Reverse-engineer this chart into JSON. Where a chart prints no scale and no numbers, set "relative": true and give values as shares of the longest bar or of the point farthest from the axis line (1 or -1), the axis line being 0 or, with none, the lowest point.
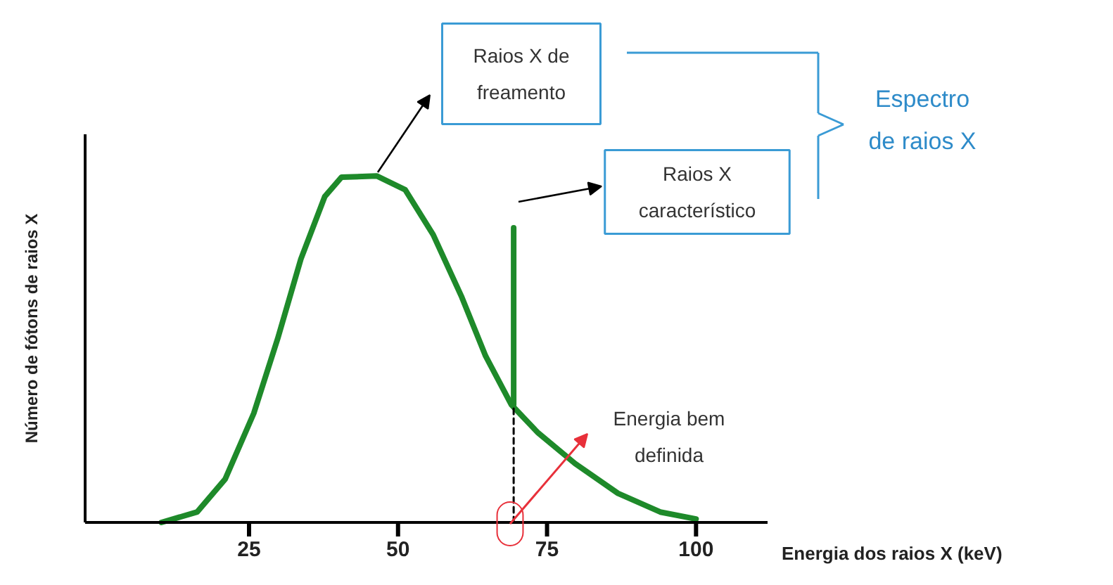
{
  "chart_data": {
    "type": "line",
    "xlabel": "Energia dos raios X (keV)",
    "ylabel": "Número de fótons de raios X",
    "relative": true,
    "xlim": [
      -2.5,
      112
    ],
    "xticks": [
      25,
      50,
      75,
      100
    ],
    "series": [
      {
        "color": "#1e8a2a",
        "x": [
          10.3,
          16.3,
          21,
          25.8,
          29.8,
          33.7,
          37.7,
          40.5,
          46.4,
          51.2,
          55.9,
          60.7,
          64.7,
          69,
          73.4,
          79.7,
          86.9,
          94,
          100
        ],
        "values": [
          0,
          0.03,
          0.125,
          0.315,
          0.53,
          0.76,
          0.94,
          0.996,
          1,
          0.96,
          0.83,
          0.65,
          0.48,
          0.34,
          0.26,
          0.17,
          0.084,
          0.03,
          0.01
        ]
      },
      {
        "color": "#1e8a2a",
        "x": [
          69.4,
          69.4
        ],
        "values": [
          0.34,
          0.85
        ]
      },
      {
        "color": "#000000",
        "x": [
          69.4,
          69.4
        ],
        "values": [
          0,
          0.34
        ],
        "line_style": "dashed"
      }
    ],
    "annotations": [
      "Raios X de\nfreamento",
      "Raios X\ncaracterístico",
      "Espectro\nde raios X",
      "Energia bem\ndefinida"
    ]
  }
}
